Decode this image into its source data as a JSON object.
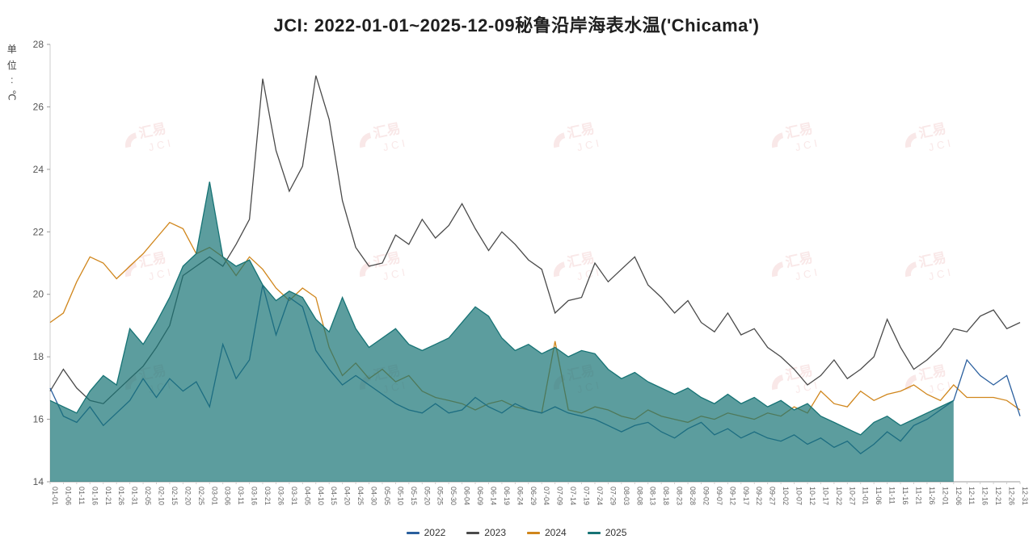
{
  "title": "JCI: 2022-01-01~2025-12-09秘鲁沿岸海表水温('Chicama')",
  "unit_label": {
    "text": "单位:℃",
    "chars": [
      "单",
      "位",
      ":",
      "℃"
    ]
  },
  "watermark": {
    "text_cn": "汇易",
    "text_en": "JCI",
    "color": "#d86c6c",
    "positions_x": [
      150,
      440,
      680,
      950,
      1115
    ],
    "positions_y": [
      168,
      328,
      468
    ]
  },
  "legend": {
    "items": [
      {
        "label": "2022",
        "color": "#2a5f9e"
      },
      {
        "label": "2023",
        "color": "#4a4a4a"
      },
      {
        "label": "2024",
        "color": "#d0861c"
      },
      {
        "label": "2025",
        "color": "#177375"
      }
    ]
  },
  "chart_data": {
    "type": "line",
    "title": "JCI: 2022-01-01~2025-12-09秘鲁沿岸海表水温('Chicama')",
    "xlabel": "",
    "ylabel": "单位:℃",
    "ylim": [
      14,
      28
    ],
    "yticks": [
      14,
      16,
      18,
      20,
      22,
      24,
      26,
      28
    ],
    "grid": false,
    "legend_position": "bottom",
    "x": [
      "01-01",
      "01-06",
      "01-11",
      "01-16",
      "01-21",
      "01-26",
      "01-31",
      "02-05",
      "02-10",
      "02-15",
      "02-20",
      "02-25",
      "03-01",
      "03-06",
      "03-11",
      "03-16",
      "03-21",
      "03-26",
      "03-31",
      "04-05",
      "04-10",
      "04-15",
      "04-20",
      "04-25",
      "04-30",
      "05-05",
      "05-10",
      "05-15",
      "05-20",
      "05-25",
      "05-30",
      "06-04",
      "06-09",
      "06-14",
      "06-19",
      "06-24",
      "06-29",
      "07-04",
      "07-09",
      "07-14",
      "07-19",
      "07-24",
      "07-29",
      "08-03",
      "08-08",
      "08-13",
      "08-18",
      "08-23",
      "08-28",
      "09-02",
      "09-07",
      "09-12",
      "09-17",
      "09-22",
      "09-27",
      "10-02",
      "10-07",
      "10-12",
      "10-17",
      "10-22",
      "10-27",
      "11-01",
      "11-06",
      "11-11",
      "11-16",
      "11-21",
      "11-26",
      "12-01",
      "12-06",
      "12-11",
      "12-16",
      "12-21",
      "12-26",
      "12-31"
    ],
    "series": [
      {
        "name": "2022",
        "color": "#2a5f9e",
        "values": [
          17.0,
          16.1,
          15.9,
          16.4,
          15.8,
          16.2,
          16.6,
          17.3,
          16.7,
          17.3,
          16.9,
          17.2,
          16.4,
          18.4,
          17.3,
          17.9,
          20.3,
          18.7,
          19.9,
          19.6,
          18.2,
          17.6,
          17.1,
          17.4,
          17.1,
          16.8,
          16.5,
          16.3,
          16.2,
          16.5,
          16.2,
          16.3,
          16.7,
          16.4,
          16.2,
          16.5,
          16.3,
          16.2,
          16.4,
          16.2,
          16.1,
          16.0,
          15.8,
          15.6,
          15.8,
          15.9,
          15.6,
          15.4,
          15.7,
          15.9,
          15.5,
          15.7,
          15.4,
          15.6,
          15.4,
          15.3,
          15.5,
          15.2,
          15.4,
          15.1,
          15.3,
          14.9,
          15.2,
          15.6,
          15.3,
          15.8,
          16.0,
          16.3,
          16.6,
          17.9,
          17.4,
          17.1,
          17.4,
          16.1
        ]
      },
      {
        "name": "2023",
        "color": "#4a4a4a",
        "values": [
          16.9,
          17.6,
          17.0,
          16.6,
          16.5,
          16.9,
          17.3,
          17.7,
          18.3,
          19.0,
          20.6,
          20.9,
          21.2,
          20.9,
          21.6,
          22.4,
          26.9,
          24.6,
          23.3,
          24.1,
          27.0,
          25.6,
          23.0,
          21.5,
          20.9,
          21.0,
          21.9,
          21.6,
          22.4,
          21.8,
          22.2,
          22.9,
          22.1,
          21.4,
          22.0,
          21.6,
          21.1,
          20.8,
          19.4,
          19.8,
          19.9,
          21.0,
          20.4,
          20.8,
          21.2,
          20.3,
          19.9,
          19.4,
          19.8,
          19.1,
          18.8,
          19.4,
          18.7,
          18.9,
          18.3,
          18.0,
          17.6,
          17.1,
          17.4,
          17.9,
          17.3,
          17.6,
          18.0,
          19.2,
          18.3,
          17.6,
          17.9,
          18.3,
          18.9,
          18.8,
          19.3,
          19.5,
          18.9,
          19.1
        ]
      },
      {
        "name": "2024",
        "color": "#d0861c",
        "values": [
          19.1,
          19.4,
          20.4,
          21.2,
          21.0,
          20.5,
          20.9,
          21.3,
          21.8,
          22.3,
          22.1,
          21.3,
          21.5,
          21.2,
          20.6,
          21.2,
          20.8,
          20.2,
          19.8,
          20.2,
          19.9,
          18.3,
          17.4,
          17.8,
          17.3,
          17.6,
          17.2,
          17.4,
          16.9,
          16.7,
          16.6,
          16.5,
          16.3,
          16.5,
          16.6,
          16.4,
          16.3,
          16.2,
          18.5,
          16.3,
          16.2,
          16.4,
          16.3,
          16.1,
          16.0,
          16.3,
          16.1,
          16.0,
          15.9,
          16.1,
          16.0,
          16.2,
          16.1,
          16.0,
          16.2,
          16.1,
          16.4,
          16.2,
          16.9,
          16.5,
          16.4,
          16.9,
          16.6,
          16.8,
          16.9,
          17.1,
          16.8,
          16.6,
          17.1,
          16.7,
          16.7,
          16.7,
          16.6,
          16.3
        ]
      },
      {
        "name": "2025",
        "color": "#177375",
        "fill": true,
        "fill_color": "rgba(23,115,117,0.70)",
        "values": [
          16.6,
          16.4,
          16.2,
          16.9,
          17.4,
          17.1,
          18.9,
          18.4,
          19.1,
          19.9,
          20.9,
          21.3,
          23.6,
          21.2,
          20.9,
          21.1,
          20.3,
          19.8,
          20.1,
          19.9,
          19.2,
          18.8,
          19.9,
          18.9,
          18.3,
          18.6,
          18.9,
          18.4,
          18.2,
          18.4,
          18.6,
          19.1,
          19.6,
          19.3,
          18.6,
          18.2,
          18.4,
          18.1,
          18.3,
          18.0,
          18.2,
          18.1,
          17.6,
          17.3,
          17.5,
          17.2,
          17.0,
          16.8,
          17.0,
          16.7,
          16.5,
          16.8,
          16.5,
          16.7,
          16.4,
          16.6,
          16.3,
          16.5,
          16.1,
          15.9,
          15.7,
          15.5,
          15.9,
          16.1,
          15.8,
          16.0,
          16.2,
          16.4,
          16.6,
          null,
          null,
          null,
          null,
          null
        ]
      }
    ]
  }
}
